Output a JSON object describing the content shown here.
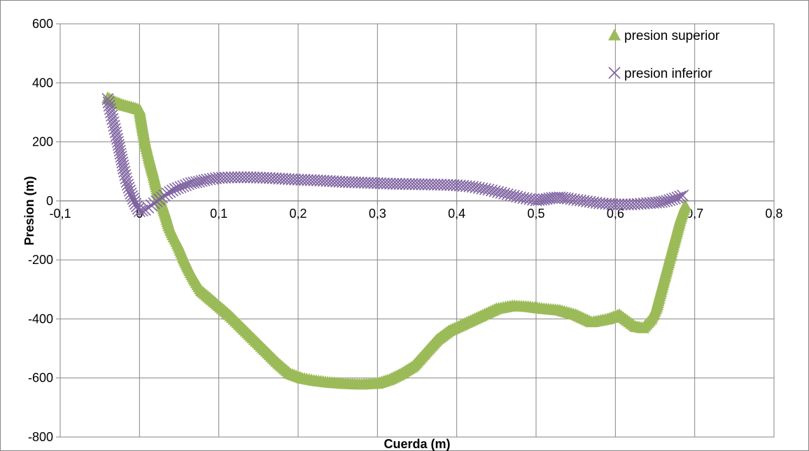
{
  "chart_data": {
    "type": "scatter",
    "title": "",
    "xlabel": "Cuerda (m)",
    "ylabel": "Presion (m)",
    "xlim": [
      -0.1,
      0.8
    ],
    "ylim": [
      -800,
      600
    ],
    "x_ticks": [
      -0.1,
      0,
      0.1,
      0.2,
      0.3,
      0.4,
      0.5,
      0.6,
      0.7,
      0.8
    ],
    "x_tick_labels": [
      "-0,1",
      "0",
      "0,1",
      "0,2",
      "0,3",
      "0,4",
      "0,5",
      "0,6",
      "0,7",
      "0,8"
    ],
    "y_ticks": [
      600,
      400,
      200,
      0,
      -200,
      -400,
      -600,
      -800
    ],
    "y_tick_labels": [
      "600",
      "400",
      "200",
      "0",
      "-200",
      "-400",
      "-600",
      "-800"
    ],
    "grid": true,
    "legend_position": "top-right",
    "series": [
      {
        "name": "presion superior",
        "marker": "triangle",
        "color": "#9BBB59",
        "points": [
          [
            -0.04,
            350
          ],
          [
            -0.03,
            335
          ],
          [
            -0.02,
            325
          ],
          [
            -0.01,
            318
          ],
          [
            0.0,
            310
          ],
          [
            0.003,
            260
          ],
          [
            0.007,
            200
          ],
          [
            0.012,
            145
          ],
          [
            0.017,
            95
          ],
          [
            0.022,
            40
          ],
          [
            0.027,
            0
          ],
          [
            0.032,
            -40
          ],
          [
            0.037,
            -85
          ],
          [
            0.042,
            -115
          ],
          [
            0.048,
            -145
          ],
          [
            0.055,
            -190
          ],
          [
            0.062,
            -230
          ],
          [
            0.07,
            -270
          ],
          [
            0.078,
            -305
          ],
          [
            0.087,
            -325
          ],
          [
            0.1,
            -355
          ],
          [
            0.115,
            -390
          ],
          [
            0.13,
            -430
          ],
          [
            0.145,
            -470
          ],
          [
            0.16,
            -510
          ],
          [
            0.175,
            -550
          ],
          [
            0.19,
            -585
          ],
          [
            0.205,
            -600
          ],
          [
            0.22,
            -608
          ],
          [
            0.24,
            -615
          ],
          [
            0.26,
            -619
          ],
          [
            0.28,
            -621
          ],
          [
            0.3,
            -618
          ],
          [
            0.315,
            -605
          ],
          [
            0.33,
            -585
          ],
          [
            0.345,
            -560
          ],
          [
            0.36,
            -515
          ],
          [
            0.375,
            -470
          ],
          [
            0.39,
            -440
          ],
          [
            0.41,
            -415
          ],
          [
            0.43,
            -390
          ],
          [
            0.45,
            -365
          ],
          [
            0.47,
            -355
          ],
          [
            0.49,
            -358
          ],
          [
            0.51,
            -365
          ],
          [
            0.53,
            -370
          ],
          [
            0.55,
            -385
          ],
          [
            0.57,
            -410
          ],
          [
            0.59,
            -400
          ],
          [
            0.605,
            -385
          ],
          [
            0.615,
            -405
          ],
          [
            0.625,
            -425
          ],
          [
            0.635,
            -430
          ],
          [
            0.645,
            -400
          ],
          [
            0.652,
            -360
          ],
          [
            0.658,
            -300
          ],
          [
            0.664,
            -240
          ],
          [
            0.67,
            -180
          ],
          [
            0.676,
            -120
          ],
          [
            0.682,
            -60
          ],
          [
            0.688,
            -15
          ]
        ]
      },
      {
        "name": "presion inferior",
        "marker": "x",
        "color": "#8064A2",
        "points": [
          [
            -0.04,
            345
          ],
          [
            -0.036,
            300
          ],
          [
            -0.032,
            255
          ],
          [
            -0.028,
            210
          ],
          [
            -0.024,
            160
          ],
          [
            -0.02,
            110
          ],
          [
            -0.016,
            65
          ],
          [
            -0.011,
            25
          ],
          [
            -0.005,
            -10
          ],
          [
            0.0,
            -35
          ],
          [
            0.007,
            -30
          ],
          [
            0.015,
            -15
          ],
          [
            0.025,
            5
          ],
          [
            0.035,
            25
          ],
          [
            0.045,
            40
          ],
          [
            0.055,
            50
          ],
          [
            0.065,
            60
          ],
          [
            0.075,
            65
          ],
          [
            0.085,
            72
          ],
          [
            0.1,
            78
          ],
          [
            0.12,
            80
          ],
          [
            0.14,
            80
          ],
          [
            0.16,
            78
          ],
          [
            0.18,
            75
          ],
          [
            0.2,
            72
          ],
          [
            0.22,
            70
          ],
          [
            0.24,
            67
          ],
          [
            0.26,
            64
          ],
          [
            0.28,
            62
          ],
          [
            0.3,
            60
          ],
          [
            0.32,
            58
          ],
          [
            0.34,
            57
          ],
          [
            0.36,
            56
          ],
          [
            0.38,
            55
          ],
          [
            0.4,
            53
          ],
          [
            0.42,
            48
          ],
          [
            0.44,
            38
          ],
          [
            0.46,
            25
          ],
          [
            0.48,
            12
          ],
          [
            0.5,
            2
          ],
          [
            0.51,
            5
          ],
          [
            0.52,
            10
          ],
          [
            0.53,
            12
          ],
          [
            0.54,
            8
          ],
          [
            0.56,
            0
          ],
          [
            0.58,
            -8
          ],
          [
            0.6,
            -12
          ],
          [
            0.62,
            -12
          ],
          [
            0.64,
            -8
          ],
          [
            0.655,
            -5
          ],
          [
            0.665,
            0
          ],
          [
            0.675,
            8
          ],
          [
            0.685,
            18
          ]
        ]
      }
    ]
  }
}
